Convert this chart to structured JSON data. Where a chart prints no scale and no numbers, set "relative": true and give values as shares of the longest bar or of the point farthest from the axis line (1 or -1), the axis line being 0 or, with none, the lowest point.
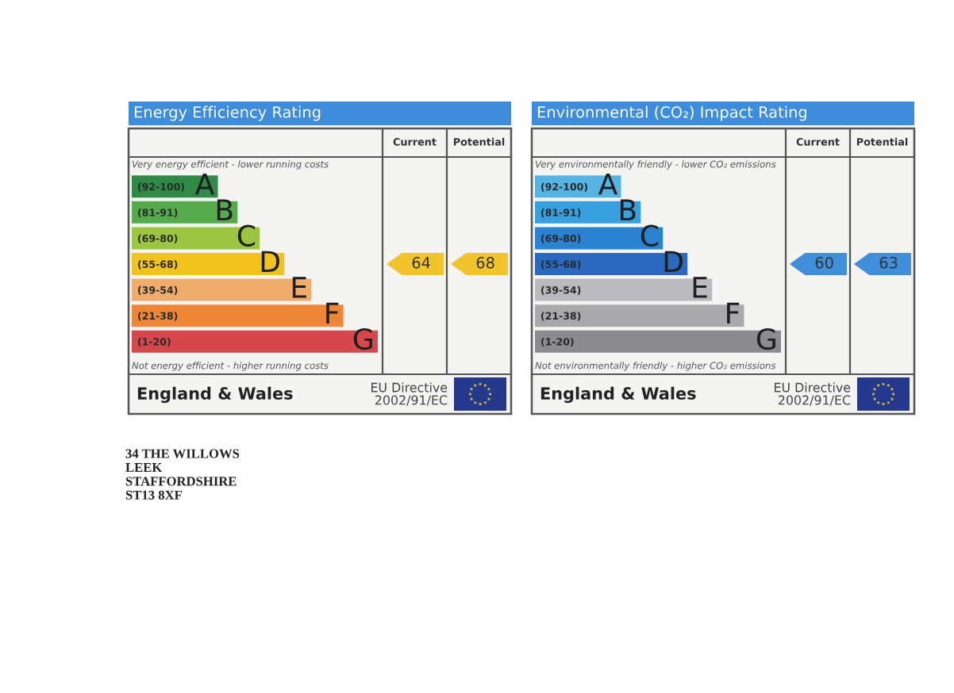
{
  "chart_data": [
    {
      "type": "bar",
      "orientation": "horizontal",
      "relative": true,
      "title": "Energy Efficiency Rating",
      "subtitle": "Very energy efficient - lower running costs",
      "categories": [
        "(92-100)",
        "(81-91)",
        "(69-80)",
        "(55-68)",
        "(39-54)",
        "(21-38)",
        "(1-20)"
      ],
      "values": [
        0.35,
        0.43,
        0.52,
        0.62,
        0.73,
        0.86,
        1
      ],
      "colors": [
        "#2f8a45",
        "#55ab4b",
        "#9cc63f",
        "#f2c31f",
        "#f0ac6a",
        "#ee8637",
        "#d6474c"
      ],
      "annotations": [
        "Not energy efficient - higher running costs",
        "England & Wales",
        "EU Directive\n2002/91/EC",
        "34 THE WILLOWS\nLEEK\nSTAFFORDSHIRE\nST13 8XF",
        {
          "text": "A",
          "x": 0.35,
          "y": "(92-100)"
        },
        {
          "text": "B",
          "x": 0.43,
          "y": "(81-91)"
        },
        {
          "text": "C",
          "x": 0.52,
          "y": "(69-80)"
        },
        {
          "text": "D",
          "x": 0.62,
          "y": "(55-68)"
        },
        {
          "text": "E",
          "x": 0.73,
          "y": "(39-54)"
        },
        {
          "text": "F",
          "x": 0.86,
          "y": "(21-38)"
        },
        {
          "text": "G",
          "x": 1,
          "y": "(1-20)"
        }
      ]
    },
    {
      "type": "other",
      "title": "Current",
      "data_labels": true,
      "series": [
        {
          "color": "#f2c42b",
          "values": [
            null,
            null,
            null,
            64,
            null,
            null,
            null
          ]
        }
      ]
    },
    {
      "type": "other",
      "title": "Potential",
      "data_labels": true,
      "series": [
        {
          "color": "#f2c42b",
          "values": [
            null,
            null,
            null,
            68,
            null,
            null,
            null
          ]
        }
      ]
    },
    {
      "type": "bar",
      "orientation": "horizontal",
      "relative": true,
      "title": "Environmental (CO₂) Impact Rating",
      "subtitle": "Very environmentally friendly - lower CO₂ emissions",
      "categories": [
        "(92-100)",
        "(81-91)",
        "(69-80)",
        "(55-68)",
        "(39-54)",
        "(21-38)",
        "(1-20)"
      ],
      "values": [
        0.35,
        0.43,
        0.52,
        0.62,
        0.72,
        0.85,
        1
      ],
      "colors": [
        "#56b4e4",
        "#37a0de",
        "#2b82d0",
        "#2a69c0",
        "#b9b9be",
        "#a8a8ad",
        "#8b8b90"
      ],
      "annotations": [
        "Not environmentally friendly - higher CO₂ emissions",
        "England & Wales",
        "EU Directive\n2002/91/EC",
        {
          "text": "A",
          "x": 0.35,
          "y": "(92-100)"
        },
        {
          "text": "B",
          "x": 0.43,
          "y": "(81-91)"
        },
        {
          "text": "C",
          "x": 0.52,
          "y": "(69-80)"
        },
        {
          "text": "D",
          "x": 0.62,
          "y": "(55-68)"
        },
        {
          "text": "E",
          "x": 0.72,
          "y": "(39-54)"
        },
        {
          "text": "F",
          "x": 0.85,
          "y": "(21-38)"
        },
        {
          "text": "G",
          "x": 1,
          "y": "(1-20)"
        }
      ]
    },
    {
      "type": "other",
      "title": "Current",
      "data_labels": true,
      "series": [
        {
          "color": "#3f8fda",
          "values": [
            null,
            null,
            null,
            60,
            null,
            null,
            null
          ]
        }
      ]
    },
    {
      "type": "other",
      "title": "Potential",
      "data_labels": true,
      "series": [
        {
          "color": "#3f8fda",
          "values": [
            null,
            null,
            null,
            63,
            null,
            null,
            null
          ]
        }
      ]
    }
  ]
}
